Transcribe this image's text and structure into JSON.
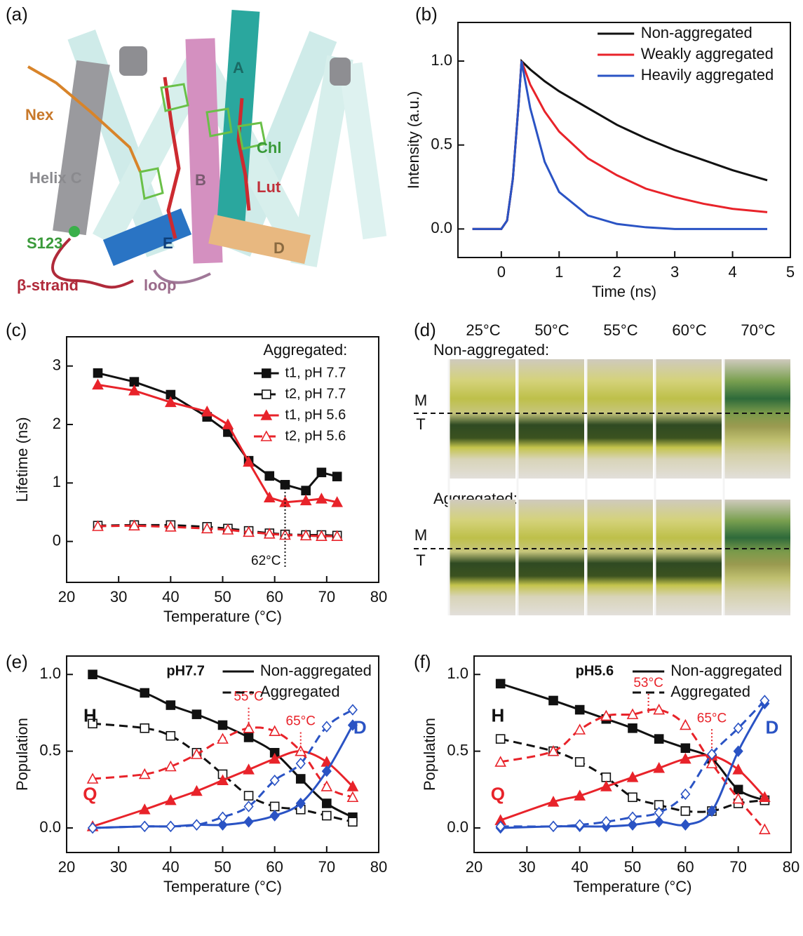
{
  "panels": {
    "a": {
      "label": "(a)",
      "parts": {
        "A": "A",
        "B": "B",
        "C": "Helix C",
        "D": "D",
        "E": "E",
        "nex": "Nex",
        "chl": "Chl",
        "lut": "Lut",
        "s123": "S123",
        "strand": "β-strand",
        "loop": "loop"
      }
    },
    "d": {
      "label": "(d)",
      "temperatures": [
        "25°C",
        "50°C",
        "55°C",
        "60°C",
        "70°C"
      ],
      "rows": [
        {
          "title": "Non-aggregated:",
          "upper": "M",
          "lower": "T"
        },
        {
          "title": "Aggregated:",
          "upper": "M",
          "lower": "T"
        }
      ]
    }
  },
  "chart_data": [
    {
      "panel": "(b)",
      "type": "line",
      "xlabel": "Time (ns)",
      "ylabel": "Intensity (a.u.)",
      "xlim": [
        -0.75,
        5
      ],
      "ylim": [
        -0.17,
        1.23
      ],
      "xticks": [
        0,
        1,
        2,
        3,
        4,
        5
      ],
      "yticks": [
        {
          "value": 0,
          "label": "0.0"
        },
        {
          "value": 0.5,
          "label": "0.5"
        },
        {
          "value": 1,
          "label": "1.0"
        }
      ],
      "legend": "upper right",
      "x": [
        -0.5,
        0,
        0.1,
        0.2,
        0.3,
        0.35,
        0.5,
        0.75,
        1,
        1.5,
        2,
        2.5,
        3,
        3.5,
        4,
        4.6
      ],
      "series": [
        {
          "name": "Non-aggregated",
          "color": "#111111",
          "style": "solid",
          "values": [
            0,
            0,
            0.05,
            0.3,
            0.75,
            1,
            0.95,
            0.88,
            0.82,
            0.72,
            0.62,
            0.54,
            0.47,
            0.41,
            0.35,
            0.29
          ]
        },
        {
          "name": "Weakly aggregated",
          "color": "#e8232a",
          "style": "solid",
          "values": [
            0,
            0,
            0.05,
            0.3,
            0.75,
            1,
            0.86,
            0.7,
            0.58,
            0.42,
            0.32,
            0.24,
            0.19,
            0.15,
            0.12,
            0.1
          ]
        },
        {
          "name": "Heavily aggregated",
          "color": "#2a53c4",
          "style": "solid",
          "values": [
            0,
            0,
            0.05,
            0.3,
            0.75,
            1,
            0.72,
            0.4,
            0.22,
            0.08,
            0.03,
            0.01,
            0,
            0,
            0,
            0
          ]
        }
      ]
    },
    {
      "panel": "(c)",
      "type": "line",
      "xlabel": "Temperature (°C)",
      "ylabel": "Lifetime (ns)",
      "xlim": [
        20,
        80
      ],
      "ylim": [
        -0.7,
        3.5
      ],
      "xticks": [
        20,
        30,
        40,
        50,
        60,
        70,
        80
      ],
      "yticks": [
        0,
        1,
        2,
        3
      ],
      "legend": "upper right",
      "legend_title": "Aggregated:",
      "x": [
        26,
        33,
        40,
        47,
        51,
        55,
        59,
        62,
        66,
        69,
        72
      ],
      "series": [
        {
          "name": "t1, pH 7.7",
          "color": "#111111",
          "style": "solid",
          "marker": "square",
          "filled": true,
          "values": [
            2.88,
            2.73,
            2.51,
            2.13,
            1.87,
            1.38,
            1.12,
            0.97,
            0.87,
            1.18,
            1.11
          ]
        },
        {
          "name": "t2, pH 7.7",
          "color": "#111111",
          "style": "dashed",
          "marker": "square",
          "filled": false,
          "values": [
            0.27,
            0.28,
            0.28,
            0.25,
            0.22,
            0.18,
            0.14,
            0.12,
            0.11,
            0.11,
            0.1
          ]
        },
        {
          "name": "t1, pH 5.6",
          "color": "#e8232a",
          "style": "solid",
          "marker": "triangle",
          "filled": true,
          "values": [
            2.68,
            2.58,
            2.38,
            2.22,
            2.0,
            1.36,
            0.75,
            0.67,
            0.7,
            0.73,
            0.67
          ]
        },
        {
          "name": "t2, pH 5.6",
          "color": "#e8232a",
          "style": "dashed",
          "marker": "triangle",
          "filled": false,
          "values": [
            0.26,
            0.27,
            0.25,
            0.22,
            0.2,
            0.16,
            0.13,
            0.11,
            0.1,
            0.09,
            0.09
          ]
        }
      ],
      "annotations": [
        {
          "text": "62°C",
          "x": 62,
          "y": 0.97,
          "color": "#111111",
          "position": "below"
        }
      ]
    },
    {
      "panel": "(e)",
      "type": "line",
      "smooth": true,
      "xlabel": "Temperature (°C)",
      "ylabel": "Population",
      "xlim": [
        20,
        80
      ],
      "ylim": [
        -0.16,
        1.12
      ],
      "xticks": [
        20,
        30,
        40,
        50,
        60,
        70,
        80
      ],
      "yticks": [
        {
          "value": 0,
          "label": "0.0"
        },
        {
          "value": 0.5,
          "label": "0.5"
        },
        {
          "value": 1,
          "label": "1.0"
        }
      ],
      "legend_title": "pH7.7",
      "legend": [
        {
          "name": "Non-aggregated",
          "style": "solid"
        },
        {
          "name": "Aggregated",
          "style": "dashed"
        }
      ],
      "x": [
        25,
        35,
        40,
        45,
        50,
        55,
        60,
        65,
        70,
        75
      ],
      "groups": [
        {
          "label": "H",
          "color": "#111111",
          "series": [
            {
              "style": "solid",
              "marker": "square",
              "filled": true,
              "values": [
                1.0,
                0.88,
                0.8,
                0.74,
                0.67,
                0.59,
                0.49,
                0.32,
                0.16,
                0.07
              ]
            },
            {
              "style": "dashed",
              "marker": "square",
              "filled": false,
              "values": [
                0.68,
                0.65,
                0.6,
                0.49,
                0.35,
                0.21,
                0.14,
                0.12,
                0.08,
                0.04
              ]
            }
          ]
        },
        {
          "label": "Q",
          "color": "#e8232a",
          "series": [
            {
              "style": "solid",
              "marker": "triangle",
              "filled": true,
              "values": [
                0.01,
                0.12,
                0.18,
                0.24,
                0.31,
                0.38,
                0.45,
                0.5,
                0.43,
                0.27
              ]
            },
            {
              "style": "dashed",
              "marker": "triangle",
              "filled": false,
              "values": [
                0.32,
                0.35,
                0.4,
                0.48,
                0.58,
                0.65,
                0.63,
                0.5,
                0.27,
                0.2
              ]
            }
          ]
        },
        {
          "label": "D",
          "color": "#2a53c4",
          "series": [
            {
              "style": "solid",
              "marker": "diamond",
              "filled": true,
              "values": [
                0,
                0.01,
                0.01,
                0.02,
                0.02,
                0.04,
                0.08,
                0.16,
                0.37,
                0.67
              ]
            },
            {
              "style": "dashed",
              "marker": "diamond",
              "filled": false,
              "values": [
                0,
                0.01,
                0.01,
                0.02,
                0.07,
                0.14,
                0.31,
                0.42,
                0.66,
                0.77
              ]
            }
          ]
        }
      ],
      "annotations": [
        {
          "text": "55°C",
          "x": 55,
          "y": 0.66,
          "color": "#e8232a",
          "position": "above"
        },
        {
          "text": "65°C",
          "x": 65,
          "y": 0.5,
          "color": "#e8232a",
          "position": "above"
        }
      ]
    },
    {
      "panel": "(f)",
      "type": "line",
      "smooth": true,
      "xlabel": "Temperature (°C)",
      "ylabel": "Population",
      "xlim": [
        20,
        80
      ],
      "ylim": [
        -0.16,
        1.12
      ],
      "xticks": [
        20,
        30,
        40,
        50,
        60,
        70,
        80
      ],
      "yticks": [
        {
          "value": 0,
          "label": "0.0"
        },
        {
          "value": 0.5,
          "label": "0.5"
        },
        {
          "value": 1,
          "label": "1.0"
        }
      ],
      "legend_title": "pH5.6",
      "legend": [
        {
          "name": "Non-aggregated",
          "style": "solid"
        },
        {
          "name": "Aggregated",
          "style": "dashed"
        }
      ],
      "x": [
        25,
        35,
        40,
        45,
        50,
        55,
        60,
        65,
        70,
        75
      ],
      "groups": [
        {
          "label": "H",
          "color": "#111111",
          "series": [
            {
              "style": "solid",
              "marker": "square",
              "filled": true,
              "values": [
                0.94,
                0.83,
                0.77,
                0.71,
                0.65,
                0.58,
                0.52,
                0.45,
                0.25,
                0.18
              ]
            },
            {
              "style": "dashed",
              "marker": "square",
              "filled": false,
              "values": [
                0.58,
                0.5,
                0.43,
                0.33,
                0.2,
                0.15,
                0.11,
                0.11,
                0.16,
                0.18
              ]
            }
          ]
        },
        {
          "label": "Q",
          "color": "#e8232a",
          "series": [
            {
              "style": "solid",
              "marker": "triangle",
              "filled": true,
              "values": [
                0.05,
                0.17,
                0.21,
                0.27,
                0.33,
                0.39,
                0.45,
                0.47,
                0.38,
                0.2
              ]
            },
            {
              "style": "dashed",
              "marker": "triangle",
              "filled": false,
              "values": [
                0.43,
                0.5,
                0.64,
                0.73,
                0.74,
                0.77,
                0.67,
                0.42,
                0.19,
                -0.01
              ]
            }
          ]
        },
        {
          "label": "D",
          "color": "#2a53c4",
          "series": [
            {
              "style": "solid",
              "marker": "diamond",
              "filled": true,
              "values": [
                0,
                0.01,
                0.01,
                0.01,
                0.02,
                0.04,
                0.02,
                0.11,
                0.5,
                0.81
              ]
            },
            {
              "style": "dashed",
              "marker": "diamond",
              "filled": false,
              "values": [
                0.01,
                0.01,
                0.02,
                0.04,
                0.07,
                0.1,
                0.22,
                0.48,
                0.65,
                0.83
              ]
            }
          ]
        }
      ],
      "annotations": [
        {
          "text": "53°C",
          "x": 53,
          "y": 0.75,
          "color": "#e8232a",
          "position": "above"
        },
        {
          "text": "65°C",
          "x": 65,
          "y": 0.52,
          "color": "#e8232a",
          "position": "above"
        }
      ]
    }
  ]
}
